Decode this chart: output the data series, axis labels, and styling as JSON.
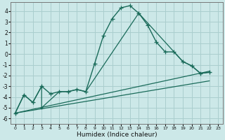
{
  "bg_color": "#cce8e8",
  "grid_color": "#aacece",
  "line_color": "#1a6b5a",
  "x_label": "Humidex (Indice chaleur)",
  "ylim": [
    -6.5,
    4.8
  ],
  "xlim": [
    -0.5,
    23.5
  ],
  "yticks": [
    -6,
    -5,
    -4,
    -3,
    -2,
    -1,
    0,
    1,
    2,
    3,
    4
  ],
  "xticks": [
    0,
    1,
    2,
    3,
    4,
    5,
    6,
    7,
    8,
    9,
    10,
    11,
    12,
    13,
    14,
    15,
    16,
    17,
    18,
    19,
    20,
    21,
    22,
    23
  ],
  "series1_x": [
    0,
    1,
    2,
    3,
    4,
    5,
    6,
    7,
    8,
    9,
    10,
    11,
    12,
    13,
    14,
    15,
    16,
    17,
    18,
    19,
    20,
    21,
    22
  ],
  "series1_y": [
    -5.5,
    -3.8,
    -4.5,
    -3.0,
    -3.7,
    -3.5,
    -3.5,
    -3.3,
    -3.5,
    -0.9,
    1.7,
    3.3,
    4.3,
    4.5,
    3.8,
    2.7,
    1.1,
    0.2,
    0.2,
    -0.7,
    -1.1,
    -1.8,
    -1.7
  ],
  "series2_x": [
    0,
    1,
    2,
    3,
    3,
    5,
    6,
    7,
    8,
    14,
    19,
    20,
    21,
    22
  ],
  "series2_y": [
    -5.5,
    -3.8,
    -4.5,
    -3.0,
    -5.0,
    -3.5,
    -3.5,
    -3.3,
    -3.5,
    3.8,
    -0.7,
    -1.1,
    -1.8,
    -1.7
  ],
  "series3_x": [
    0,
    22
  ],
  "series3_y": [
    -5.5,
    -1.6
  ],
  "series4_x": [
    0,
    22
  ],
  "series4_y": [
    -5.5,
    -2.5
  ]
}
